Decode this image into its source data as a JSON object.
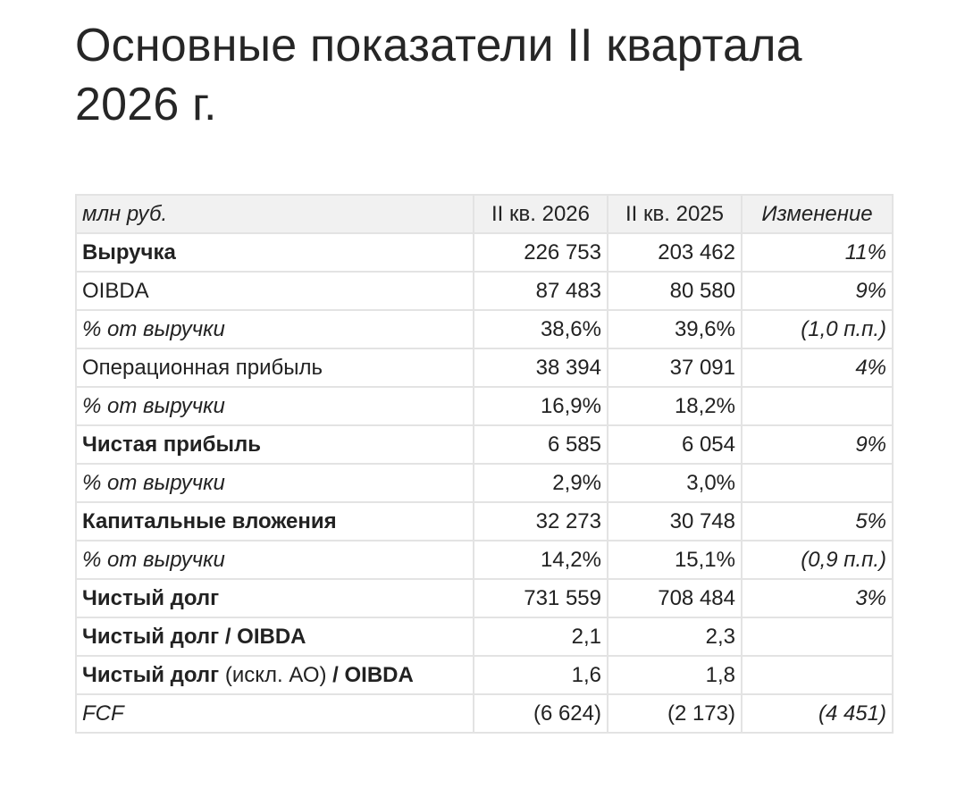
{
  "title": "Основные показатели II квартала 2026 г.",
  "table": {
    "header": {
      "unit": "млн руб.",
      "col_current": "II кв. 2026",
      "col_previous": "II кв. 2025",
      "col_change": "Изменение"
    },
    "rows": [
      {
        "label": "Выручка",
        "current": "226 753",
        "previous": "203 462",
        "change": "11%"
      },
      {
        "label": "OIBDA",
        "current": "87 483",
        "previous": "80 580",
        "change": "9%"
      },
      {
        "label": "% от выручки",
        "current": "38,6%",
        "previous": "39,6%",
        "change": "(1,0 п.п.)"
      },
      {
        "label": "Операционная прибыль",
        "current": "38 394",
        "previous": "37 091",
        "change": "4%"
      },
      {
        "label": "% от выручки",
        "current": "16,9%",
        "previous": "18,2%",
        "change": ""
      },
      {
        "label": "Чистая прибыль",
        "current": "6 585",
        "previous": "6 054",
        "change": "9%"
      },
      {
        "label": "% от выручки",
        "current": "2,9%",
        "previous": "3,0%",
        "change": ""
      },
      {
        "label": "Капитальные вложения",
        "current": "32 273",
        "previous": "30 748",
        "change": "5%"
      },
      {
        "label": "% от выручки",
        "current": "14,2%",
        "previous": "15,1%",
        "change": "(0,9 п.п.)"
      },
      {
        "label": "Чистый долг",
        "current": "731 559",
        "previous": "708 484",
        "change": "3%"
      },
      {
        "label": "Чистый долг / OIBDA",
        "current": "2,1",
        "previous": "2,3",
        "change": ""
      },
      {
        "label_a": "Чистый долг",
        "label_b": " (искл. АО) ",
        "label_c": "/ OIBDA",
        "current": "1,6",
        "previous": "1,8",
        "change": ""
      },
      {
        "label": "FCF",
        "current": "(6 624)",
        "previous": "(2 173)",
        "change": "(4 451)"
      }
    ]
  }
}
